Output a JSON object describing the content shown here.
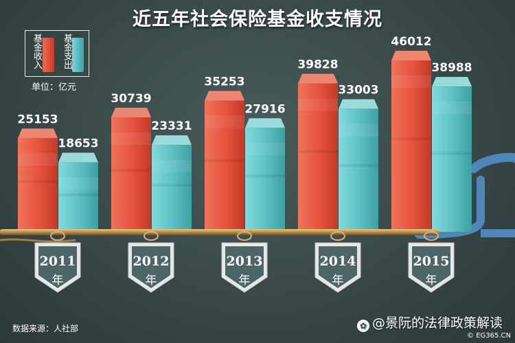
{
  "title": "近五年社会保险基金收支情况",
  "legend": {
    "income_label": "基金收入",
    "expense_label": "基金支出"
  },
  "unit": "单位：亿元",
  "source": "数据来源：人社部",
  "watermark": "@景阮的法律政策解读",
  "site": "EG365.CN",
  "colors": {
    "income": "#e5513c",
    "expense": "#5bbfc2",
    "background": "#374445",
    "badge": "#4e6567"
  },
  "chart_data": {
    "type": "bar",
    "title": "近五年社会保险基金收支情况",
    "categories": [
      "2011",
      "2012",
      "2013",
      "2014",
      "2015"
    ],
    "category_suffix": "年",
    "unit": "亿元",
    "series": [
      {
        "name": "基金收入",
        "values": [
          25153,
          30739,
          35253,
          39828,
          46012
        ]
      },
      {
        "name": "基金支出",
        "values": [
          18653,
          23331,
          27916,
          33003,
          38988
        ]
      }
    ],
    "ylim": [
      0,
      50000
    ],
    "grid": false,
    "legend_position": "top-left",
    "show_value_labels": true
  }
}
